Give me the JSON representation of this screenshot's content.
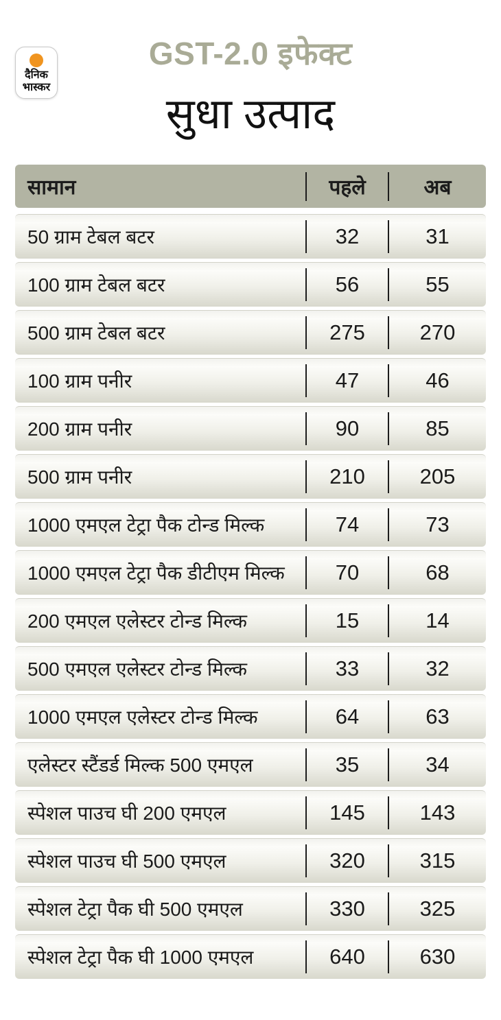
{
  "brand": {
    "logo_line1": "दैनिक",
    "logo_line2": "भास्कर"
  },
  "header": {
    "kicker": "GST-2.0 इफेक्ट",
    "title": "सुधा उत्पाद"
  },
  "colors": {
    "kicker_text": "#a9ab96",
    "table_header_bg": "#b2b4a3",
    "row_gradient_top": "#fcfcf9",
    "row_gradient_bottom": "#d8d8cd",
    "logo_orange": "#f0941f",
    "divider_black": "#1c1c1c"
  },
  "chart_data": {
    "type": "table",
    "title": "सुधा उत्पाद",
    "subtitle": "GST-2.0 इफेक्ट",
    "columns": [
      "सामान",
      "पहले",
      "अब"
    ],
    "rows": [
      [
        "50 ग्राम टेबल बटर",
        32,
        31
      ],
      [
        "100 ग्राम टेबल बटर",
        56,
        55
      ],
      [
        "500 ग्राम टेबल बटर",
        275,
        270
      ],
      [
        "100 ग्राम पनीर",
        47,
        46
      ],
      [
        "200 ग्राम पनीर",
        90,
        85
      ],
      [
        "500 ग्राम पनीर",
        210,
        205
      ],
      [
        "1000 एमएल टेट्रा पैक टोन्ड मिल्क",
        74,
        73
      ],
      [
        "1000 एमएल टेट्रा पैक डीटीएम मिल्क",
        70,
        68
      ],
      [
        "200 एमएल एलेस्टर टोन्ड मिल्क",
        15,
        14
      ],
      [
        "500 एमएल एलेस्टर टोन्ड मिल्क",
        33,
        32
      ],
      [
        "1000 एमएल एलेस्टर टोन्ड मिल्क",
        64,
        63
      ],
      [
        "एलेस्टर स्टैंडर्ड मिल्क 500 एमएल",
        35,
        34
      ],
      [
        "स्पेशल पाउच घी 200 एमएल",
        145,
        143
      ],
      [
        "स्पेशल पाउच घी 500 एमएल",
        320,
        315
      ],
      [
        "स्पेशल टेट्रा पैक घी 500 एमएल",
        330,
        325
      ],
      [
        "स्पेशल टेट्रा पैक घी 1000 एमएल",
        640,
        630
      ]
    ]
  }
}
